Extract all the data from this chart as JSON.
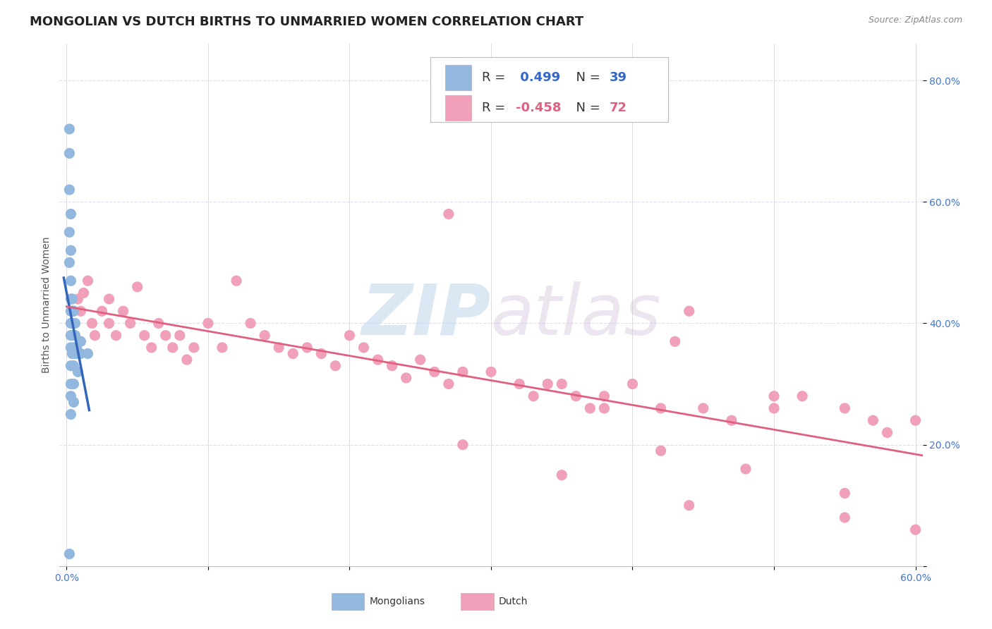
{
  "title": "MONGOLIAN VS DUTCH BIRTHS TO UNMARRIED WOMEN CORRELATION CHART",
  "source": "Source: ZipAtlas.com",
  "ylabel_label": "Births to Unmarried Women",
  "xlim": [
    -0.005,
    0.605
  ],
  "ylim": [
    0.0,
    0.86
  ],
  "x_ticks": [
    0.0,
    0.1,
    0.2,
    0.3,
    0.4,
    0.5,
    0.6
  ],
  "x_tick_labels": [
    "0.0%",
    "",
    "",
    "",
    "",
    "",
    "60.0%"
  ],
  "y_ticks": [
    0.0,
    0.2,
    0.4,
    0.6,
    0.8
  ],
  "y_tick_labels": [
    "",
    "20.0%",
    "40.0%",
    "60.0%",
    "80.0%"
  ],
  "mongolian_color": "#92b8e0",
  "dutch_color": "#f0a0b8",
  "mongolian_line_color": "#3366bb",
  "dutch_line_color": "#e06080",
  "watermark_zip": "ZIP",
  "watermark_atlas": "atlas",
  "legend_r1": "R =  0.499",
  "legend_n1": "N = 39",
  "legend_r2": "R = -0.458",
  "legend_n2": "N = 72",
  "mongolian_x": [
    0.002,
    0.002,
    0.002,
    0.002,
    0.002,
    0.003,
    0.003,
    0.003,
    0.003,
    0.003,
    0.003,
    0.003,
    0.003,
    0.003,
    0.003,
    0.003,
    0.003,
    0.004,
    0.004,
    0.004,
    0.004,
    0.004,
    0.004,
    0.005,
    0.005,
    0.005,
    0.005,
    0.005,
    0.005,
    0.006,
    0.006,
    0.006,
    0.007,
    0.008,
    0.008,
    0.01,
    0.01,
    0.015,
    0.002
  ],
  "mongolian_y": [
    0.72,
    0.68,
    0.62,
    0.55,
    0.5,
    0.58,
    0.52,
    0.47,
    0.44,
    0.42,
    0.4,
    0.38,
    0.36,
    0.33,
    0.3,
    0.28,
    0.25,
    0.44,
    0.42,
    0.4,
    0.38,
    0.35,
    0.3,
    0.42,
    0.4,
    0.36,
    0.33,
    0.3,
    0.27,
    0.4,
    0.38,
    0.35,
    0.36,
    0.35,
    0.32,
    0.37,
    0.35,
    0.35,
    0.02
  ],
  "dutch_x": [
    0.005,
    0.008,
    0.01,
    0.012,
    0.015,
    0.018,
    0.02,
    0.025,
    0.03,
    0.03,
    0.035,
    0.04,
    0.045,
    0.05,
    0.055,
    0.06,
    0.065,
    0.07,
    0.075,
    0.08,
    0.085,
    0.09,
    0.1,
    0.11,
    0.12,
    0.13,
    0.14,
    0.15,
    0.16,
    0.17,
    0.18,
    0.19,
    0.2,
    0.21,
    0.22,
    0.23,
    0.24,
    0.25,
    0.26,
    0.27,
    0.28,
    0.3,
    0.32,
    0.33,
    0.34,
    0.35,
    0.36,
    0.37,
    0.38,
    0.4,
    0.42,
    0.44,
    0.45,
    0.47,
    0.5,
    0.52,
    0.55,
    0.57,
    0.58,
    0.6,
    0.27,
    0.38,
    0.44,
    0.5,
    0.55,
    0.28,
    0.35,
    0.42,
    0.48,
    0.55,
    0.6,
    0.43
  ],
  "dutch_y": [
    0.42,
    0.44,
    0.42,
    0.45,
    0.47,
    0.4,
    0.38,
    0.42,
    0.44,
    0.4,
    0.38,
    0.42,
    0.4,
    0.46,
    0.38,
    0.36,
    0.4,
    0.38,
    0.36,
    0.38,
    0.34,
    0.36,
    0.4,
    0.36,
    0.47,
    0.4,
    0.38,
    0.36,
    0.35,
    0.36,
    0.35,
    0.33,
    0.38,
    0.36,
    0.34,
    0.33,
    0.31,
    0.34,
    0.32,
    0.3,
    0.32,
    0.32,
    0.3,
    0.28,
    0.3,
    0.3,
    0.28,
    0.26,
    0.28,
    0.3,
    0.26,
    0.42,
    0.26,
    0.24,
    0.26,
    0.28,
    0.26,
    0.24,
    0.22,
    0.24,
    0.58,
    0.26,
    0.1,
    0.28,
    0.12,
    0.2,
    0.15,
    0.19,
    0.16,
    0.08,
    0.06,
    0.37
  ],
  "background_color": "#ffffff",
  "grid_color": "#ddddee",
  "title_fontsize": 13,
  "axis_label_fontsize": 10,
  "tick_fontsize": 10,
  "legend_fontsize": 13
}
